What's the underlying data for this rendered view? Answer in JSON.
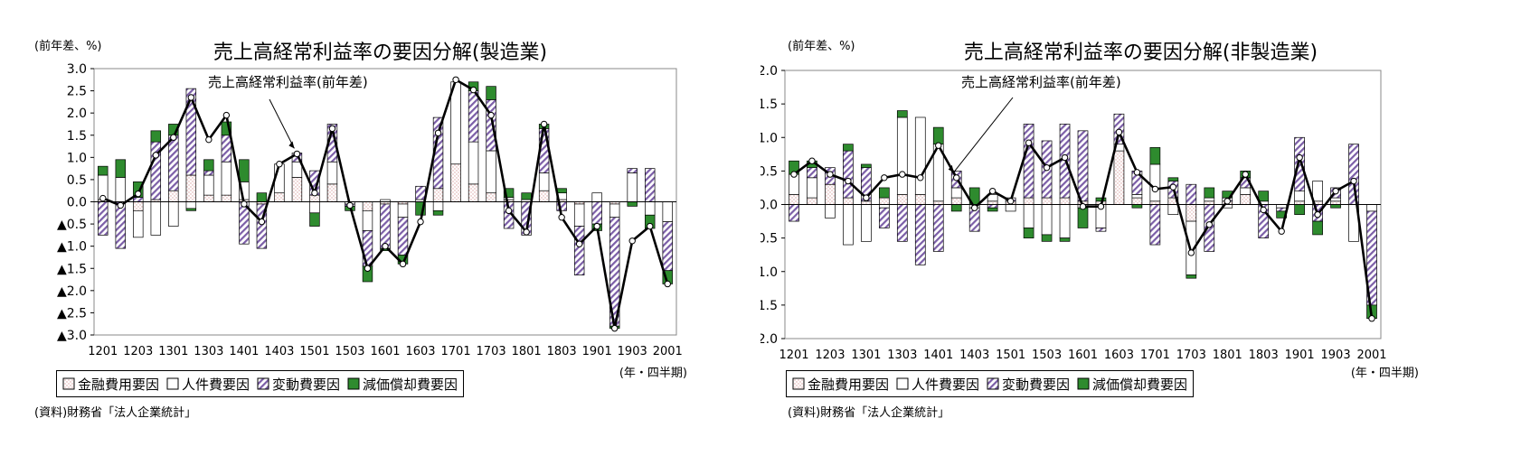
{
  "legend": {
    "financial": "金融費用要因",
    "personnel": "人件費要因",
    "variable": "変動費要因",
    "depreciation": "減価償却費要因"
  },
  "colors": {
    "line": "#000000",
    "variable": "#7b5ea7",
    "depreciation": "#2e8b2e",
    "financial": "#d9a0a0"
  },
  "charts": [
    {
      "title": "売上高経常利益率の要因分解(製造業)",
      "unit": "(前年差、%)",
      "annotation": "売上高経常利益率(前年差)",
      "quarter_label": "(年・四半期)",
      "source": "(資料)財務省「法人企業統計」"
    },
    {
      "title": "売上高経常利益率の要因分解(非製造業)",
      "unit": "(前年差、%)",
      "annotation": "売上高経常利益率(前年差)",
      "quarter_label": "(年・四半期)",
      "source": "(資料)財務省「法人企業統計」"
    }
  ],
  "chart_data": [
    {
      "type": "bar",
      "title": "売上高経常利益率の要因分解(製造業)",
      "ylabel": "(前年差、%)",
      "xlabel": "(年・四半期)",
      "ylim": [
        -3.0,
        3.0
      ],
      "yticks": [
        "3.0",
        "2.5",
        "2.0",
        "1.5",
        "1.0",
        "0.5",
        "0.0",
        "▲0.5",
        "▲1.0",
        "▲1.5",
        "▲2.0",
        "▲2.5",
        "▲3.0"
      ],
      "xtick_labels": [
        "1201",
        "1203",
        "1301",
        "1303",
        "1401",
        "1403",
        "1501",
        "1503",
        "1601",
        "1603",
        "1701",
        "1703",
        "1801",
        "1803",
        "1901",
        "1903",
        "2001"
      ],
      "categories": [
        "1201",
        "1202",
        "1203",
        "1204",
        "1301",
        "1302",
        "1303",
        "1304",
        "1401",
        "1402",
        "1403",
        "1404",
        "1501",
        "1502",
        "1503",
        "1504",
        "1601",
        "1602",
        "1603",
        "1604",
        "1701",
        "1702",
        "1703",
        "1704",
        "1801",
        "1802",
        "1803",
        "1804",
        "1901",
        "1902",
        "1903",
        "1904",
        "2001"
      ],
      "series": [
        {
          "name": "金融費用要因",
          "values": [
            0.05,
            0.0,
            -0.2,
            0.05,
            0.25,
            0.6,
            0.15,
            0.15,
            0.05,
            -0.05,
            0.2,
            0.55,
            0.15,
            0.4,
            0.0,
            -0.2,
            -0.05,
            -0.05,
            0.0,
            0.3,
            0.85,
            0.4,
            0.2,
            0.05,
            0.0,
            0.25,
            0.05,
            -0.05,
            0.0,
            -0.05,
            0.0,
            0.0,
            0.0
          ]
        },
        {
          "name": "人件費要因",
          "values": [
            0.55,
            0.55,
            -0.6,
            -0.75,
            -0.55,
            -0.15,
            0.45,
            0.75,
            0.4,
            0.0,
            0.65,
            0.35,
            -0.25,
            0.5,
            -0.05,
            -0.45,
            0.05,
            -0.3,
            0.05,
            -0.2,
            1.85,
            0.95,
            0.95,
            0.05,
            0.05,
            0.4,
            0.15,
            -0.5,
            0.2,
            -0.3,
            0.65,
            -0.3,
            -0.45
          ]
        },
        {
          "name": "変動費要因",
          "values": [
            -0.75,
            -1.05,
            0.1,
            1.3,
            1.25,
            1.95,
            0.1,
            0.6,
            -0.95,
            -1.0,
            0.0,
            0.2,
            0.55,
            0.85,
            -0.05,
            -0.8,
            -1.0,
            -0.85,
            0.3,
            1.6,
            0.0,
            1.15,
            1.15,
            -0.6,
            -0.75,
            1.0,
            -0.2,
            -1.1,
            -0.5,
            -2.45,
            0.1,
            0.75,
            -1.1
          ]
        },
        {
          "name": "減価償却費要因",
          "values": [
            0.2,
            0.4,
            0.35,
            0.25,
            0.25,
            -0.05,
            0.25,
            0.3,
            0.5,
            0.2,
            0.0,
            0.0,
            -0.3,
            0.0,
            -0.1,
            -0.35,
            -0.05,
            -0.2,
            -0.3,
            -0.1,
            0.0,
            0.2,
            0.3,
            0.2,
            0.15,
            0.1,
            0.1,
            0.0,
            -0.15,
            -0.05,
            -0.1,
            -0.3,
            -0.3
          ]
        }
      ],
      "line": {
        "name": "売上高経常利益率(前年差)",
        "values": [
          0.08,
          -0.08,
          0.18,
          1.05,
          1.45,
          2.35,
          1.4,
          1.95,
          -0.05,
          -0.45,
          0.85,
          1.08,
          0.2,
          1.65,
          -0.08,
          -1.5,
          -1.0,
          -1.4,
          -0.45,
          1.55,
          2.75,
          2.52,
          1.95,
          -0.2,
          -0.68,
          1.75,
          -0.35,
          -0.95,
          -0.55,
          -2.85,
          -0.88,
          -0.55,
          -1.85
        ]
      }
    },
    {
      "type": "bar",
      "title": "売上高経常利益率の要因分解(非製造業)",
      "ylabel": "(前年差、%)",
      "xlabel": "(年・四半期)",
      "ylim": [
        -2.0,
        2.0
      ],
      "yticks": [
        "2.0",
        "1.5",
        "1.0",
        "0.5",
        "0.0",
        "▲0.5",
        "▲1.0",
        "▲1.5",
        "▲2.0"
      ],
      "xtick_labels": [
        "1201",
        "1203",
        "1301",
        "1303",
        "1401",
        "1403",
        "1501",
        "1503",
        "1601",
        "1603",
        "1701",
        "1703",
        "1801",
        "1803",
        "1901",
        "1903",
        "2001"
      ],
      "categories": [
        "1201",
        "1202",
        "1203",
        "1204",
        "1301",
        "1302",
        "1303",
        "1304",
        "1401",
        "1402",
        "1403",
        "1404",
        "1501",
        "1502",
        "1503",
        "1504",
        "1601",
        "1602",
        "1603",
        "1604",
        "1701",
        "1702",
        "1703",
        "1704",
        "1801",
        "1802",
        "1803",
        "1804",
        "1901",
        "1902",
        "1903",
        "1904",
        "2001"
      ],
      "series": [
        {
          "name": "金融費用要因",
          "values": [
            0.15,
            0.1,
            0.3,
            0.1,
            0.05,
            0.1,
            0.15,
            0.15,
            0.05,
            0.1,
            0.0,
            0.05,
            0.05,
            0.1,
            0.1,
            0.1,
            0.05,
            0.05,
            0.8,
            0.1,
            0.05,
            0.1,
            -0.25,
            0.05,
            0.05,
            0.15,
            0.0,
            0.0,
            0.05,
            0.05,
            0.05,
            0.0,
            0.0
          ]
        },
        {
          "name": "人件費要因",
          "values": [
            0.3,
            0.3,
            -0.2,
            -0.6,
            -0.55,
            -0.05,
            1.15,
            1.15,
            0.85,
            0.15,
            -0.05,
            0.1,
            -0.1,
            -0.35,
            -0.45,
            -0.5,
            -0.05,
            -0.35,
            0.1,
            0.05,
            0.55,
            -0.15,
            -0.8,
            0.05,
            -0.05,
            0.1,
            0.05,
            -0.05,
            0.15,
            0.3,
            0.05,
            -0.55,
            -0.1
          ]
        },
        {
          "name": "変動費要因",
          "values": [
            -0.25,
            0.15,
            0.25,
            0.7,
            0.5,
            -0.3,
            -0.55,
            -0.9,
            -0.7,
            0.25,
            -0.35,
            -0.05,
            0.05,
            1.1,
            0.85,
            1.1,
            1.05,
            -0.05,
            0.45,
            0.35,
            -0.6,
            0.25,
            0.3,
            -0.7,
            0.05,
            0.15,
            -0.5,
            -0.05,
            0.8,
            -0.25,
            0.15,
            0.9,
            -1.4
          ]
        },
        {
          "name": "減価償却費要因",
          "values": [
            0.2,
            0.1,
            0.0,
            0.1,
            0.05,
            0.15,
            0.1,
            0.0,
            0.25,
            -0.1,
            0.25,
            -0.05,
            0.0,
            -0.15,
            -0.1,
            -0.05,
            -0.3,
            0.05,
            0.0,
            -0.05,
            0.25,
            0.05,
            -0.05,
            0.15,
            0.1,
            0.1,
            0.15,
            -0.1,
            -0.15,
            -0.2,
            -0.05,
            0.0,
            -0.2
          ]
        }
      ],
      "line": {
        "name": "売上高経常利益率(前年差)",
        "values": [
          0.45,
          0.65,
          0.45,
          0.35,
          0.1,
          0.4,
          0.45,
          0.4,
          0.88,
          0.4,
          -0.05,
          0.2,
          0.05,
          0.92,
          0.55,
          0.7,
          -0.03,
          -0.03,
          1.08,
          0.48,
          0.23,
          0.26,
          -0.72,
          -0.3,
          0.05,
          0.45,
          -0.08,
          -0.4,
          0.7,
          -0.15,
          0.2,
          0.35,
          -1.7
        ]
      }
    }
  ]
}
